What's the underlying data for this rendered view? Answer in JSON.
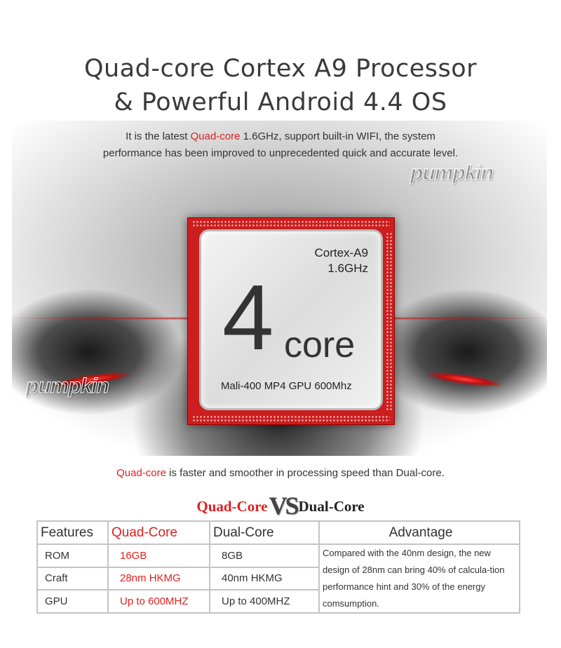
{
  "header": {
    "title_line1": "Quad-core Cortex A9 Processor",
    "title_line2": "& Powerful Android 4.4 OS",
    "subtitle_pre": "It is the latest ",
    "subtitle_highlight": "Quad-core",
    "subtitle_post": " 1.6GHz, support built-in WIFI, the system",
    "subtitle_line2": "performance has been improved to unprecedented quick and accurate level."
  },
  "brand": {
    "logo": "pumpkin"
  },
  "chip": {
    "model": "Cortex-A9",
    "freq": "1.6GHz",
    "number": "4",
    "word": "core",
    "gpu": "Mali-400 MP4 GPU 600Mhz"
  },
  "caption": {
    "highlight": "Quad-core",
    "rest": " is faster and smoother in processing speed than Dual-core."
  },
  "vs": {
    "left": "Quad-Core",
    "mid": "VS",
    "right": "Dual-Core"
  },
  "table": {
    "headers": [
      "Features",
      "Quad-Core",
      "Dual-Core",
      "Advantage"
    ],
    "rows": [
      [
        "ROM",
        "16GB",
        "8GB"
      ],
      [
        "Craft",
        "28nm HKMG",
        "40nm HKMG"
      ],
      [
        "GPU",
        "Up to 600MHZ",
        "Up to 400MHZ"
      ]
    ],
    "advantage": "Compared with the 40nm design,  the new design of 28nm can bring 40% of calcula-tion performance hint and 30% of the energy  comsumption."
  },
  "colors": {
    "accent": "#e02020",
    "chip": "#cc1e1e"
  }
}
